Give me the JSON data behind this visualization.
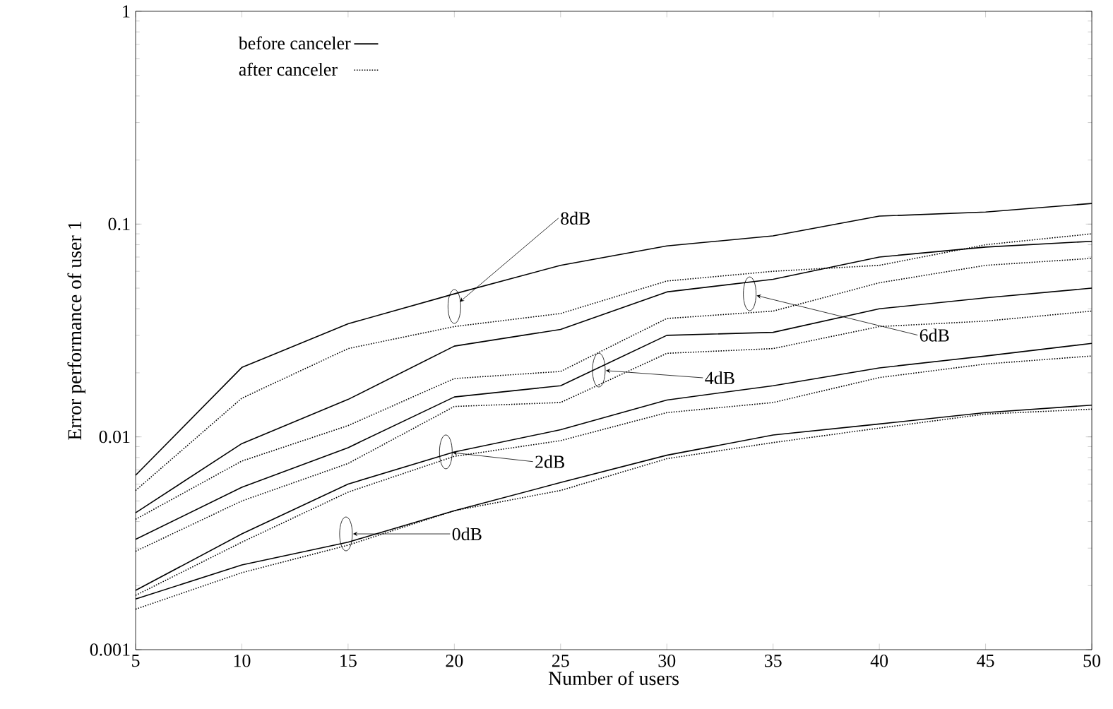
{
  "chart_data": {
    "type": "line",
    "xlabel": "Number of users",
    "ylabel": "Error performance of user 1",
    "log": "y",
    "x": [
      5,
      10,
      15,
      20,
      25,
      30,
      35,
      40,
      45,
      50
    ],
    "xlim": [
      5,
      50
    ],
    "xticks": [
      5,
      10,
      15,
      20,
      25,
      30,
      35,
      40,
      45,
      50
    ],
    "ylim": [
      0.001,
      1
    ],
    "yticks": [
      0.001,
      0.01,
      0.1,
      1
    ],
    "grid": false,
    "legend": "top left",
    "marker": "none",
    "series": [
      {
        "name": "before canceler",
        "color": "#000000",
        "line_style": "solid",
        "values": [
          0.0066,
          0.0212,
          0.034,
          0.047,
          0.064,
          0.079,
          0.088,
          0.109,
          0.114,
          0.125
        ]
      },
      {
        "name": "after canceler",
        "color": "#000000",
        "line_style": "dotted",
        "values": [
          0.0056,
          0.0152,
          0.026,
          0.033,
          0.038,
          0.054,
          0.06,
          0.064,
          0.08,
          0.09
        ]
      },
      {
        "color": "#000000",
        "line_style": "solid",
        "values": [
          0.0044,
          0.0093,
          0.015,
          0.0267,
          0.032,
          0.048,
          0.055,
          0.07,
          0.078,
          0.083
        ]
      },
      {
        "color": "#000000",
        "line_style": "dotted",
        "values": [
          0.0041,
          0.0077,
          0.0113,
          0.0188,
          0.0203,
          0.036,
          0.039,
          0.053,
          0.064,
          0.069
        ]
      },
      {
        "color": "#000000",
        "line_style": "solid",
        "values": [
          0.0033,
          0.0058,
          0.0089,
          0.0154,
          0.0174,
          0.03,
          0.031,
          0.04,
          0.045,
          0.05
        ]
      },
      {
        "color": "#000000",
        "line_style": "dotted",
        "values": [
          0.0029,
          0.005,
          0.0075,
          0.0139,
          0.0145,
          0.0247,
          0.026,
          0.033,
          0.035,
          0.039
        ]
      },
      {
        "color": "#000000",
        "line_style": "solid",
        "values": [
          0.0019,
          0.0035,
          0.006,
          0.0085,
          0.0108,
          0.0149,
          0.0174,
          0.0211,
          0.024,
          0.0275
        ]
      },
      {
        "color": "#000000",
        "line_style": "dotted",
        "values": [
          0.0018,
          0.0032,
          0.0055,
          0.0081,
          0.0096,
          0.013,
          0.0145,
          0.019,
          0.022,
          0.024
        ]
      },
      {
        "color": "#000000",
        "line_style": "solid",
        "values": [
          0.00173,
          0.0025,
          0.0032,
          0.0045,
          0.0061,
          0.0082,
          0.0102,
          0.0115,
          0.013,
          0.0141
        ]
      },
      {
        "color": "#000000",
        "line_style": "dotted",
        "values": [
          0.00155,
          0.0023,
          0.0031,
          0.0045,
          0.0056,
          0.0079,
          0.0094,
          0.011,
          0.0128,
          0.0135
        ]
      }
    ],
    "annotations": [
      {
        "text": "8dB",
        "x": 20,
        "y": 0.041
      },
      {
        "text": "6dB",
        "x": 33.9,
        "y": 0.047
      },
      {
        "text": "4dB",
        "x": 26.8,
        "y": 0.0206
      },
      {
        "text": "2dB",
        "x": 19.6,
        "y": 0.0085
      },
      {
        "text": "0dB",
        "x": 14.9,
        "y": 0.0035
      }
    ]
  }
}
